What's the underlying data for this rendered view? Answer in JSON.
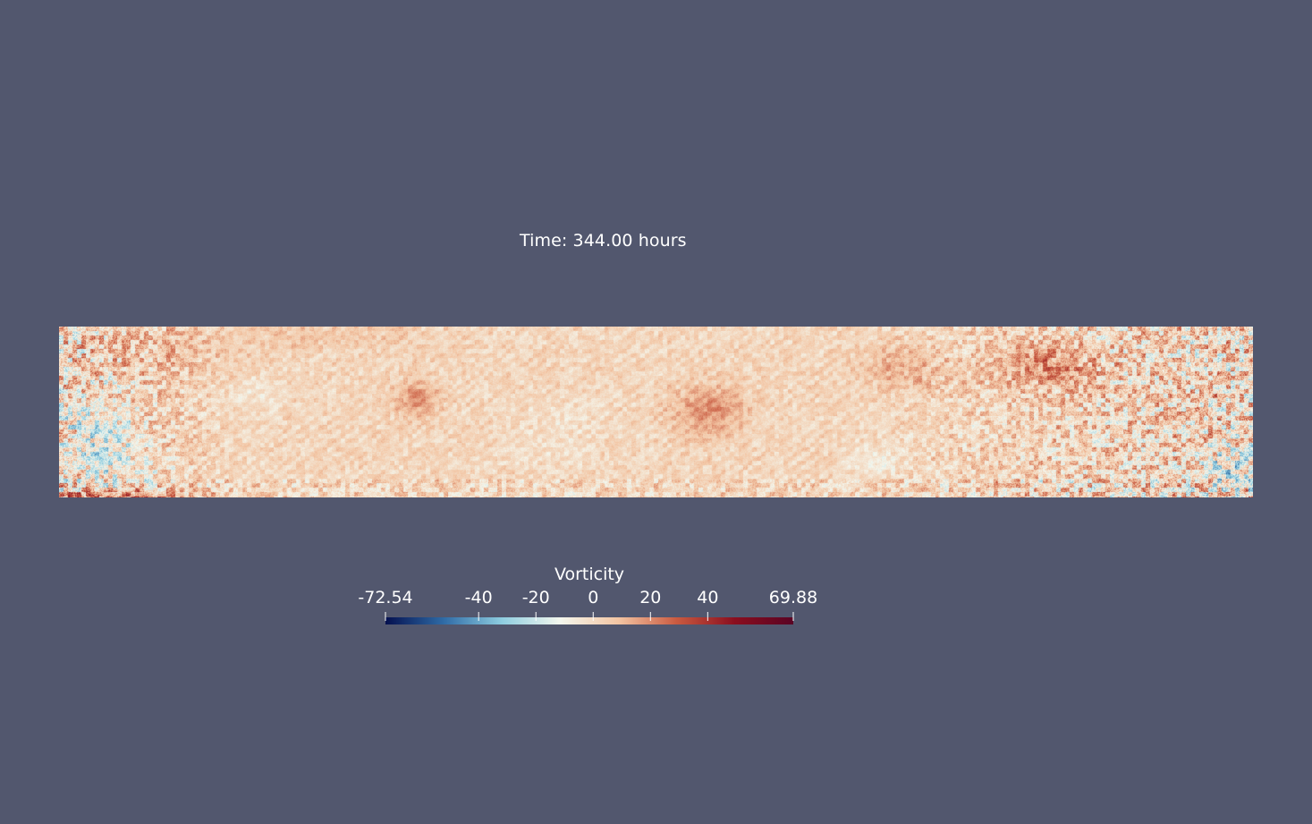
{
  "time_label": "Time: 344.00 hours",
  "field": {
    "variable": "Vorticity",
    "colormap": "blue-white-red diverging",
    "background_color": "#52576e"
  },
  "colorbar": {
    "title": "Vorticity",
    "range": [
      -72.54,
      69.88
    ],
    "ticks": [
      {
        "value": -72.54,
        "label": "-72.54"
      },
      {
        "value": -40,
        "label": "-40"
      },
      {
        "value": -20,
        "label": "-20"
      },
      {
        "value": 0,
        "label": "0"
      },
      {
        "value": 20,
        "label": "20"
      },
      {
        "value": 40,
        "label": "40"
      },
      {
        "value": 69.88,
        "label": "69.88"
      }
    ],
    "colors": [
      "#05104f",
      "#2f6ba6",
      "#8ecde0",
      "#f4f7ee",
      "#f3c5a3",
      "#c95a40",
      "#8a0e1f",
      "#5a0424"
    ]
  }
}
